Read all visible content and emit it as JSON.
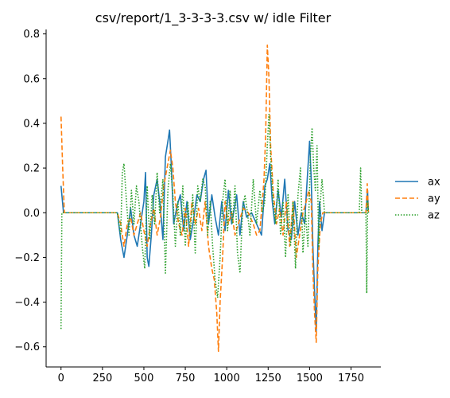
{
  "chart_data": {
    "type": "line",
    "title": "csv/report/1_3-3-3-3.csv w/  idle Filter",
    "xlabel": "",
    "ylabel": "",
    "xlim": [
      -90,
      1930
    ],
    "ylim": [
      -0.69,
      0.82
    ],
    "x_ticks": [
      0,
      250,
      500,
      750,
      1000,
      1250,
      1500,
      1750
    ],
    "y_ticks": [
      -0.6,
      -0.4,
      -0.2,
      0.0,
      0.2,
      0.4,
      0.6,
      0.8
    ],
    "x_tick_labels": [
      "0",
      "250",
      "500",
      "750",
      "1000",
      "1250",
      "1500",
      "1750"
    ],
    "y_tick_labels": [
      "−0.6",
      "−0.4",
      "−0.2",
      "0.0",
      "0.2",
      "0.4",
      "0.6",
      "0.8"
    ],
    "grid": false,
    "legend_position": "right",
    "series": [
      {
        "name": "ax",
        "color": "#1f77b4",
        "dash": "solid",
        "points": [
          [
            0,
            0.12
          ],
          [
            15,
            0.0
          ],
          [
            340,
            0.0
          ],
          [
            360,
            -0.12
          ],
          [
            380,
            -0.2
          ],
          [
            400,
            -0.1
          ],
          [
            420,
            0.02
          ],
          [
            440,
            -0.1
          ],
          [
            460,
            -0.15
          ],
          [
            480,
            -0.05
          ],
          [
            500,
            0.05
          ],
          [
            510,
            0.18
          ],
          [
            520,
            -0.2
          ],
          [
            530,
            -0.24
          ],
          [
            545,
            -0.1
          ],
          [
            560,
            0.08
          ],
          [
            580,
            0.15
          ],
          [
            600,
            0.02
          ],
          [
            615,
            -0.12
          ],
          [
            630,
            0.25
          ],
          [
            645,
            0.32
          ],
          [
            655,
            0.37
          ],
          [
            665,
            0.22
          ],
          [
            680,
            -0.05
          ],
          [
            700,
            0.03
          ],
          [
            720,
            0.08
          ],
          [
            740,
            -0.08
          ],
          [
            760,
            0.05
          ],
          [
            780,
            -0.12
          ],
          [
            800,
            -0.03
          ],
          [
            820,
            0.08
          ],
          [
            840,
            0.05
          ],
          [
            860,
            0.15
          ],
          [
            875,
            0.19
          ],
          [
            890,
            -0.05
          ],
          [
            910,
            0.08
          ],
          [
            930,
            -0.02
          ],
          [
            950,
            -0.1
          ],
          [
            970,
            0.05
          ],
          [
            990,
            -0.08
          ],
          [
            1010,
            0.1
          ],
          [
            1030,
            -0.05
          ],
          [
            1060,
            0.08
          ],
          [
            1080,
            -0.1
          ],
          [
            1100,
            0.05
          ],
          [
            1120,
            -0.02
          ],
          [
            1150,
            0.0
          ],
          [
            1180,
            -0.05
          ],
          [
            1210,
            -0.1
          ],
          [
            1230,
            0.12
          ],
          [
            1245,
            0.15
          ],
          [
            1260,
            0.22
          ],
          [
            1275,
            0.05
          ],
          [
            1290,
            -0.05
          ],
          [
            1310,
            0.1
          ],
          [
            1330,
            -0.02
          ],
          [
            1350,
            0.15
          ],
          [
            1370,
            -0.08
          ],
          [
            1390,
            -0.12
          ],
          [
            1410,
            0.05
          ],
          [
            1430,
            -0.1
          ],
          [
            1450,
            0.0
          ],
          [
            1470,
            -0.05
          ],
          [
            1480,
            0.08
          ],
          [
            1490,
            0.2
          ],
          [
            1500,
            0.32
          ],
          [
            1510,
            0.15
          ],
          [
            1520,
            -0.15
          ],
          [
            1530,
            -0.35
          ],
          [
            1540,
            -0.53
          ],
          [
            1550,
            -0.15
          ],
          [
            1560,
            0.05
          ],
          [
            1575,
            -0.08
          ],
          [
            1590,
            0.0
          ],
          [
            1840,
            0.0
          ],
          [
            1850,
            0.1
          ],
          [
            1855,
            0.0
          ]
        ]
      },
      {
        "name": "ay",
        "color": "#ff7f0e",
        "dash": "6,3",
        "points": [
          [
            0,
            0.43
          ],
          [
            10,
            0.2
          ],
          [
            20,
            0.0
          ],
          [
            340,
            0.0
          ],
          [
            360,
            -0.05
          ],
          [
            380,
            -0.15
          ],
          [
            400,
            -0.05
          ],
          [
            420,
            -0.02
          ],
          [
            440,
            -0.1
          ],
          [
            460,
            -0.05
          ],
          [
            480,
            0.0
          ],
          [
            500,
            -0.08
          ],
          [
            520,
            -0.15
          ],
          [
            540,
            -0.05
          ],
          [
            560,
            0.02
          ],
          [
            580,
            -0.1
          ],
          [
            600,
            -0.02
          ],
          [
            620,
            0.12
          ],
          [
            640,
            0.2
          ],
          [
            660,
            0.28
          ],
          [
            675,
            0.2
          ],
          [
            690,
            0.05
          ],
          [
            710,
            -0.05
          ],
          [
            730,
            -0.1
          ],
          [
            750,
            0.02
          ],
          [
            770,
            -0.15
          ],
          [
            790,
            0.05
          ],
          [
            810,
            -0.05
          ],
          [
            830,
            0.02
          ],
          [
            850,
            -0.08
          ],
          [
            870,
            0.05
          ],
          [
            890,
            -0.15
          ],
          [
            910,
            -0.25
          ],
          [
            925,
            -0.3
          ],
          [
            940,
            -0.45
          ],
          [
            950,
            -0.62
          ],
          [
            960,
            -0.4
          ],
          [
            975,
            -0.2
          ],
          [
            990,
            0.05
          ],
          [
            1010,
            -0.05
          ],
          [
            1030,
            0.0
          ],
          [
            1050,
            -0.1
          ],
          [
            1070,
            -0.05
          ],
          [
            1100,
            0.02
          ],
          [
            1130,
            0.0
          ],
          [
            1160,
            -0.05
          ],
          [
            1180,
            -0.1
          ],
          [
            1200,
            -0.08
          ],
          [
            1215,
            0.05
          ],
          [
            1225,
            0.15
          ],
          [
            1235,
            0.35
          ],
          [
            1245,
            0.75
          ],
          [
            1255,
            0.6
          ],
          [
            1265,
            0.3
          ],
          [
            1280,
            0.1
          ],
          [
            1300,
            -0.05
          ],
          [
            1320,
            0.02
          ],
          [
            1340,
            -0.1
          ],
          [
            1360,
            0.05
          ],
          [
            1380,
            -0.15
          ],
          [
            1400,
            0.05
          ],
          [
            1420,
            -0.2
          ],
          [
            1440,
            -0.1
          ],
          [
            1460,
            0.0
          ],
          [
            1480,
            0.05
          ],
          [
            1495,
            0.1
          ],
          [
            1510,
            0.05
          ],
          [
            1520,
            -0.25
          ],
          [
            1530,
            -0.45
          ],
          [
            1540,
            -0.58
          ],
          [
            1550,
            -0.25
          ],
          [
            1565,
            -0.05
          ],
          [
            1580,
            0.0
          ],
          [
            1840,
            0.0
          ],
          [
            1848,
            0.13
          ],
          [
            1855,
            0.0
          ]
        ]
      },
      {
        "name": "az",
        "color": "#2ca02c",
        "dash": "1.5,2",
        "points": [
          [
            0,
            -0.52
          ],
          [
            5,
            0.0
          ],
          [
            340,
            0.0
          ],
          [
            360,
            -0.1
          ],
          [
            370,
            0.18
          ],
          [
            380,
            0.22
          ],
          [
            395,
            0.05
          ],
          [
            410,
            -0.1
          ],
          [
            425,
            0.1
          ],
          [
            440,
            -0.05
          ],
          [
            455,
            0.12
          ],
          [
            470,
            0.05
          ],
          [
            490,
            -0.15
          ],
          [
            505,
            -0.25
          ],
          [
            520,
            0.12
          ],
          [
            535,
            -0.12
          ],
          [
            550,
            0.08
          ],
          [
            565,
            -0.05
          ],
          [
            580,
            0.18
          ],
          [
            595,
            0.0
          ],
          [
            615,
            0.15
          ],
          [
            630,
            -0.27
          ],
          [
            645,
            0.1
          ],
          [
            660,
            0.22
          ],
          [
            675,
            0.08
          ],
          [
            690,
            -0.15
          ],
          [
            705,
            0.05
          ],
          [
            720,
            -0.1
          ],
          [
            735,
            0.12
          ],
          [
            750,
            -0.15
          ],
          [
            765,
            0.05
          ],
          [
            780,
            -0.1
          ],
          [
            795,
            0.08
          ],
          [
            810,
            -0.18
          ],
          [
            825,
            0.12
          ],
          [
            840,
            0.05
          ],
          [
            855,
            0.15
          ],
          [
            870,
            0.12
          ],
          [
            885,
            -0.1
          ],
          [
            900,
            0.05
          ],
          [
            915,
            -0.15
          ],
          [
            930,
            -0.3
          ],
          [
            945,
            -0.38
          ],
          [
            960,
            -0.2
          ],
          [
            975,
            0.05
          ],
          [
            990,
            0.15
          ],
          [
            1005,
            -0.08
          ],
          [
            1020,
            0.1
          ],
          [
            1035,
            -0.05
          ],
          [
            1050,
            0.12
          ],
          [
            1065,
            -0.18
          ],
          [
            1080,
            -0.27
          ],
          [
            1095,
            0.0
          ],
          [
            1110,
            0.08
          ],
          [
            1125,
            0.0
          ],
          [
            1140,
            -0.1
          ],
          [
            1160,
            0.15
          ],
          [
            1180,
            -0.05
          ],
          [
            1200,
            0.1
          ],
          [
            1215,
            0.0
          ],
          [
            1230,
            0.05
          ],
          [
            1245,
            0.3
          ],
          [
            1255,
            0.44
          ],
          [
            1265,
            0.25
          ],
          [
            1280,
            0.05
          ],
          [
            1295,
            -0.05
          ],
          [
            1310,
            0.15
          ],
          [
            1325,
            -0.1
          ],
          [
            1340,
            0.05
          ],
          [
            1355,
            -0.2
          ],
          [
            1370,
            0.08
          ],
          [
            1385,
            -0.15
          ],
          [
            1400,
            0.05
          ],
          [
            1415,
            -0.25
          ],
          [
            1430,
            0.08
          ],
          [
            1445,
            0.2
          ],
          [
            1460,
            -0.18
          ],
          [
            1475,
            0.0
          ],
          [
            1490,
            -0.15
          ],
          [
            1505,
            0.25
          ],
          [
            1515,
            0.38
          ],
          [
            1525,
            0.2
          ],
          [
            1535,
            0.1
          ],
          [
            1545,
            0.3
          ],
          [
            1555,
            -0.15
          ],
          [
            1565,
            0.05
          ],
          [
            1575,
            0.15
          ],
          [
            1590,
            0.0
          ],
          [
            1800,
            0.0
          ],
          [
            1808,
            0.2
          ],
          [
            1815,
            0.0
          ],
          [
            1840,
            0.0
          ],
          [
            1845,
            -0.36
          ],
          [
            1850,
            0.05
          ],
          [
            1855,
            0.0
          ]
        ]
      }
    ]
  }
}
